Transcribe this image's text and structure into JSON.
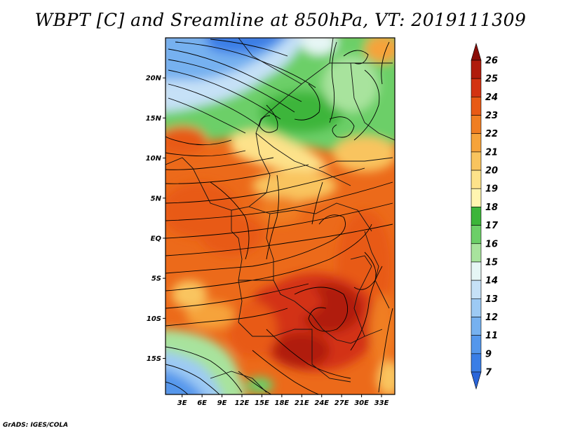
{
  "title": "WBPT [C] and Sreamline at 850hPa, VT: 2019111309",
  "credit": "GrADS: IGES/COLA",
  "map": {
    "lat_ticks": [
      {
        "value": 20,
        "label": "20N"
      },
      {
        "value": 15,
        "label": "15N"
      },
      {
        "value": 10,
        "label": "10N"
      },
      {
        "value": 5,
        "label": "5N"
      },
      {
        "value": 0,
        "label": "EQ"
      },
      {
        "value": -5,
        "label": "5S"
      },
      {
        "value": -10,
        "label": "10S"
      },
      {
        "value": -15,
        "label": "15S"
      }
    ],
    "lon_ticks": [
      {
        "value": 3,
        "label": "3E"
      },
      {
        "value": 6,
        "label": "6E"
      },
      {
        "value": 9,
        "label": "9E"
      },
      {
        "value": 12,
        "label": "12E"
      },
      {
        "value": 15,
        "label": "15E"
      },
      {
        "value": 18,
        "label": "18E"
      },
      {
        "value": 21,
        "label": "21E"
      },
      {
        "value": 24,
        "label": "24E"
      },
      {
        "value": 27,
        "label": "27E"
      },
      {
        "value": 30,
        "label": "30E"
      },
      {
        "value": 33,
        "label": "33E"
      }
    ],
    "lon_range": [
      0.5,
      35
    ],
    "lat_range": [
      -19.5,
      25
    ]
  },
  "colorbar": {
    "labels": [
      "7",
      "9",
      "11",
      "12",
      "13",
      "14",
      "15",
      "16",
      "17",
      "18",
      "19",
      "20",
      "21",
      "22",
      "23",
      "24",
      "25",
      "26"
    ],
    "colors": [
      "#2a65d9",
      "#3a7ee6",
      "#5497ec",
      "#76b1f0",
      "#9dcaf4",
      "#c6e1f7",
      "#e6f6f5",
      "#a8e39d",
      "#6ccf68",
      "#3cb53a",
      "#fff5b0",
      "#fde28a",
      "#f9c45e",
      "#f6a33a",
      "#f07e22",
      "#e85a15",
      "#d33312",
      "#b01c0c",
      "#8a0d08"
    ]
  }
}
